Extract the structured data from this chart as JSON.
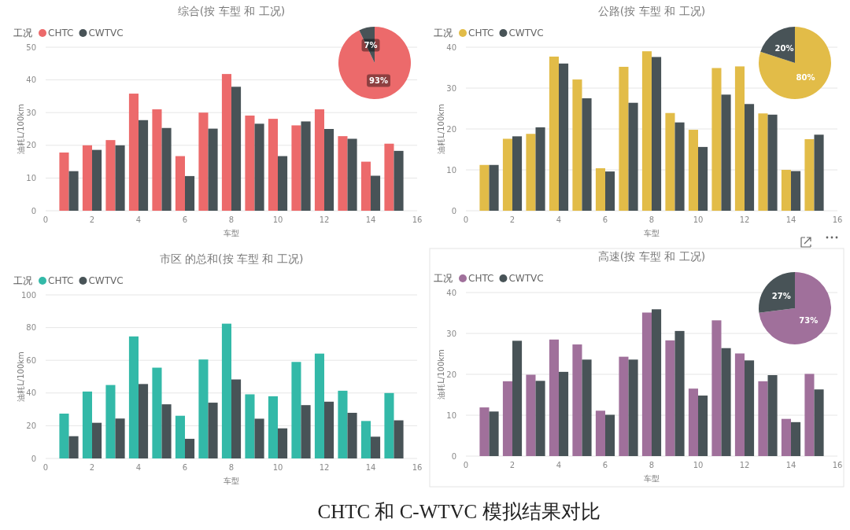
{
  "chart_data": [
    {
      "type": "bar",
      "title": "综合(按 车型 和 工况)",
      "xlabel": "车型",
      "ylabel": "油耗L/100km",
      "legend_title": "工况",
      "legend": "top left",
      "grid": "y",
      "x": [
        1,
        2,
        3,
        4,
        5,
        6,
        7,
        8,
        9,
        10,
        11,
        12,
        13,
        14,
        15
      ],
      "xlim": [
        0,
        16
      ],
      "xticks": [
        0,
        2,
        4,
        6,
        8,
        10,
        12,
        14,
        16
      ],
      "ylim": [
        0,
        50
      ],
      "yticks": [
        0,
        10,
        20,
        30,
        40,
        50
      ],
      "series": [
        {
          "name": "CHTC",
          "color": "#ec6a6b",
          "values": [
            17.8,
            20.0,
            21.6,
            35.8,
            31.0,
            16.7,
            30.0,
            41.8,
            29.1,
            28.1,
            26.1,
            31.0,
            22.8,
            15.0,
            20.5
          ]
        },
        {
          "name": "CWTVC",
          "color": "#485357",
          "values": [
            12.1,
            18.6,
            20.0,
            27.7,
            25.3,
            10.6,
            25.1,
            37.9,
            26.6,
            16.7,
            27.3,
            25.0,
            22.0,
            10.7,
            18.3
          ]
        }
      ]
    },
    {
      "type": "pie",
      "categories": [
        null,
        null
      ],
      "values": [
        93,
        7
      ],
      "colors": [
        "#ec6a6b",
        "#485357"
      ],
      "value_labels": [
        "93%",
        "7%"
      ]
    },
    {
      "type": "bar",
      "title": "公路(按 车型 和 工况)",
      "xlabel": "车型",
      "ylabel": "油耗L/100km",
      "legend_title": "工况",
      "legend": "top left",
      "grid": "y",
      "x": [
        1,
        2,
        3,
        4,
        5,
        6,
        7,
        8,
        9,
        10,
        11,
        12,
        13,
        14,
        15
      ],
      "xlim": [
        0,
        16
      ],
      "xticks": [
        0,
        2,
        4,
        6,
        8,
        10,
        12,
        14,
        16
      ],
      "ylim": [
        0,
        40
      ],
      "yticks": [
        0,
        10,
        20,
        30,
        40
      ],
      "series": [
        {
          "name": "CHTC",
          "color": "#e2bc48",
          "values": [
            11.2,
            17.6,
            18.8,
            37.7,
            32.1,
            10.4,
            35.2,
            39.0,
            23.9,
            19.8,
            34.9,
            35.3,
            23.8,
            10.0,
            17.5
          ]
        },
        {
          "name": "CWTVC",
          "color": "#485357",
          "values": [
            11.2,
            18.2,
            20.4,
            36.0,
            27.5,
            9.6,
            26.4,
            37.6,
            21.6,
            15.6,
            28.4,
            26.1,
            23.5,
            9.7,
            18.6
          ]
        }
      ]
    },
    {
      "type": "pie",
      "categories": [
        null,
        null
      ],
      "values": [
        80,
        20
      ],
      "colors": [
        "#e2bc48",
        "#485357"
      ],
      "value_labels": [
        "80%",
        "20%"
      ]
    },
    {
      "type": "bar",
      "title": "市区 的总和(按 车型 和 工况)",
      "xlabel": "车型",
      "ylabel": "油耗L/100km",
      "legend_title": "工况",
      "legend": "top left",
      "grid": "y",
      "x": [
        1,
        2,
        3,
        4,
        5,
        6,
        7,
        8,
        9,
        10,
        11,
        12,
        13,
        14,
        15
      ],
      "xlim": [
        0,
        16
      ],
      "xticks": [
        0,
        2,
        4,
        6,
        8,
        10,
        12,
        14,
        16
      ],
      "ylim": [
        0,
        100
      ],
      "yticks": [
        0,
        20,
        40,
        60,
        80,
        100
      ],
      "series": [
        {
          "name": "CHTC",
          "color": "#33b9a8",
          "values": [
            27.4,
            40.9,
            44.9,
            74.6,
            55.5,
            26.1,
            60.5,
            82.4,
            39.2,
            38.0,
            59.0,
            64.1,
            41.4,
            22.9,
            40.0
          ]
        },
        {
          "name": "CWTVC",
          "color": "#485357",
          "values": [
            13.6,
            21.8,
            24.4,
            45.5,
            33.1,
            12.0,
            34.1,
            48.3,
            24.3,
            18.4,
            32.6,
            34.7,
            27.9,
            13.3,
            23.3
          ]
        }
      ]
    },
    {
      "type": "bar",
      "title": "高速(按 车型 和 工况)",
      "xlabel": "车型",
      "ylabel": "油耗L/100km",
      "legend_title": "工况",
      "legend": "top left",
      "grid": "y",
      "x": [
        1,
        2,
        3,
        4,
        5,
        6,
        7,
        8,
        9,
        10,
        11,
        12,
        13,
        14,
        15
      ],
      "xlim": [
        0,
        16
      ],
      "xticks": [
        0,
        2,
        4,
        6,
        8,
        10,
        12,
        14,
        16
      ],
      "ylim": [
        0,
        40
      ],
      "yticks": [
        0,
        10,
        20,
        30,
        40
      ],
      "series": [
        {
          "name": "CHTC",
          "color": "#a0709b",
          "values": [
            11.9,
            18.3,
            19.9,
            28.5,
            27.3,
            11.1,
            24.3,
            35.1,
            28.3,
            16.5,
            33.2,
            25.1,
            18.3,
            9.1,
            20.1
          ]
        },
        {
          "name": "CWTVC",
          "color": "#485357",
          "values": [
            10.9,
            28.2,
            18.4,
            20.6,
            23.6,
            10.1,
            23.6,
            35.9,
            30.6,
            14.8,
            26.4,
            23.4,
            19.8,
            8.3,
            16.3
          ]
        }
      ]
    },
    {
      "type": "pie",
      "categories": [
        null,
        null
      ],
      "values": [
        73,
        27
      ],
      "colors": [
        "#a0709b",
        "#485357"
      ],
      "value_labels": [
        "73%",
        "27%"
      ]
    },
    {
      "type": "other",
      "annotations": [
        "CHTC 和 C-WTVC 模拟结果对比"
      ]
    }
  ]
}
